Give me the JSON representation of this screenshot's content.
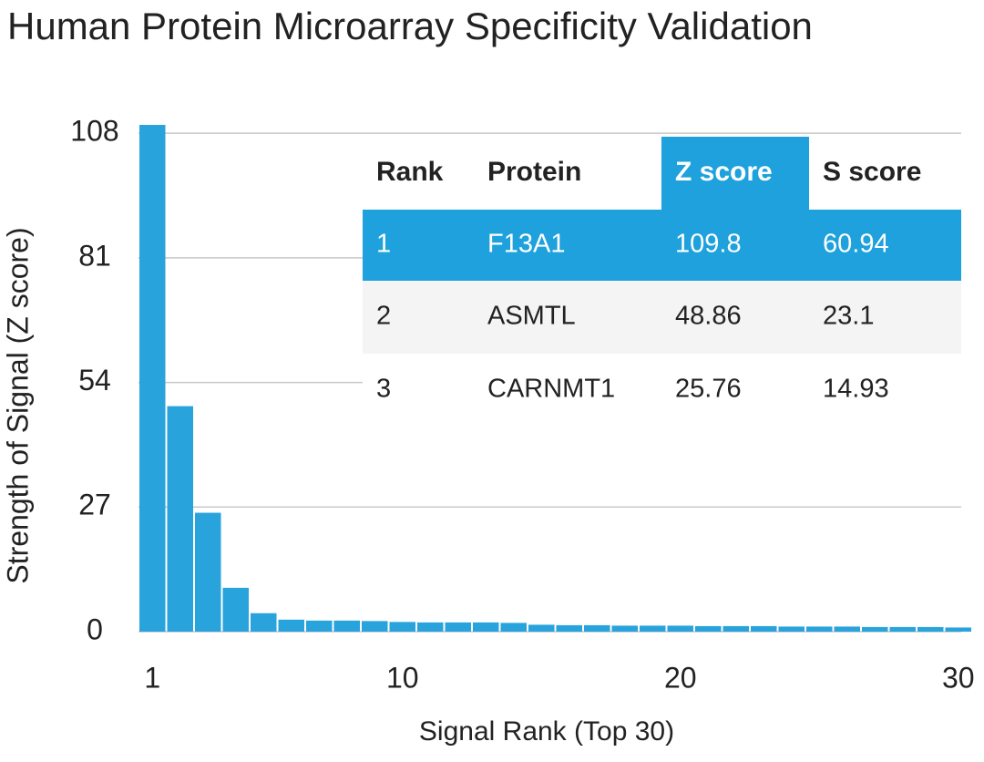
{
  "chart_data": {
    "type": "bar",
    "title": "Human Protein Microarray Specificity Validation",
    "x_label": "Signal Rank (Top 30)",
    "y_label": "Strength of Signal (Z score)",
    "x": [
      1,
      2,
      3,
      4,
      5,
      6,
      7,
      8,
      9,
      10,
      11,
      12,
      13,
      14,
      15,
      16,
      17,
      18,
      19,
      20,
      21,
      22,
      23,
      24,
      25,
      26,
      27,
      28,
      29,
      30
    ],
    "values": [
      109.8,
      48.86,
      25.76,
      9.5,
      4,
      2.6,
      2.4,
      2.4,
      2.3,
      2.1,
      2,
      2,
      2,
      1.9,
      1.5,
      1.4,
      1.4,
      1.3,
      1.3,
      1.3,
      1.2,
      1.2,
      1.2,
      1.1,
      1.1,
      1.1,
      1,
      1,
      1,
      0.9
    ],
    "color": "#29a3dc",
    "xlim": [
      0.5,
      30.5
    ],
    "xticks": [
      1,
      10,
      20,
      30
    ],
    "ylim": [
      0,
      110
    ],
    "yticks": [
      0,
      27,
      54,
      81,
      108
    ],
    "grid": true,
    "table": {
      "columns": [
        "Rank",
        "Protein",
        "Z score",
        "S score"
      ],
      "rows": [
        [
          1,
          "F13A1",
          109.8,
          60.94
        ],
        [
          2,
          "ASMTL",
          48.86,
          23.1
        ],
        [
          3,
          "CARNMT1",
          25.76,
          14.93
        ]
      ],
      "highlight_color": "#1ea1dc"
    }
  }
}
